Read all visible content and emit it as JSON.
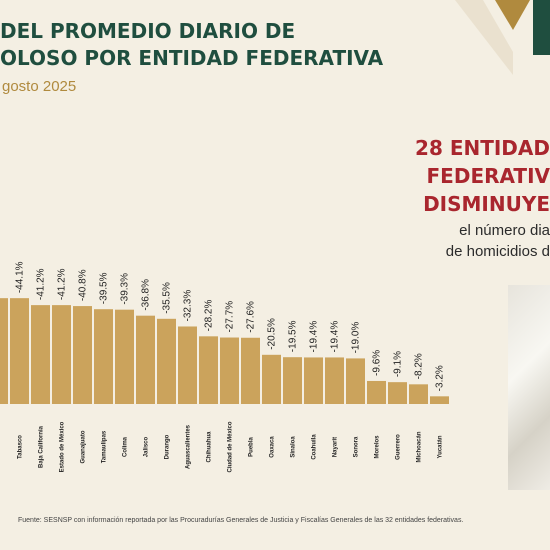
{
  "header": {
    "title_line1": "DEL PROMEDIO DIARIO DE",
    "title_line2": "OLOSO POR ENTIDAD FEDERATIVA",
    "subtitle": "gosto 2025"
  },
  "side_panel": {
    "headline": [
      "28 ENTIDAD",
      "FEDERATIV",
      "DISMINUYE"
    ],
    "body": [
      "el número dia",
      "de homicidios d"
    ]
  },
  "footer": {
    "source": "Fuente: SESNSP con información reportada por las Procuradurías Generales de Justicia y Fiscalías Generales de las 32 entidades federativas."
  },
  "colors": {
    "bar": "#cba35c",
    "title": "#1f4e3f",
    "accent_red": "#a9262e",
    "background": "#f4efe3"
  },
  "chart_data": {
    "type": "bar",
    "categories": [
      "",
      "Tabasco",
      "Baja California",
      "Estado de México",
      "Guanajuato",
      "Tamaulipas",
      "Colima",
      "Jalisco",
      "Durango",
      "Aguascalientes",
      "Chihuahua",
      "Ciudad de México",
      "Puebla",
      "Oaxaca",
      "Sinaloa",
      "Coahuila",
      "Nayarit",
      "Sonora",
      "Morelos",
      "Guerrero",
      "Michoacán",
      "Yucatán"
    ],
    "values": [
      -44.1,
      -44.1,
      -41.2,
      -41.2,
      -40.8,
      -39.5,
      -39.3,
      -36.8,
      -35.5,
      -32.3,
      -28.2,
      -27.7,
      -27.6,
      -20.5,
      -19.5,
      -19.4,
      -19.4,
      -19.0,
      -9.6,
      -9.1,
      -8.2,
      -3.2
    ],
    "data_labels": [
      "",
      "-44.1%",
      "-41.2%",
      "-41.2%",
      "-40.8%",
      "-39.5%",
      "-39.3%",
      "-36.8%",
      "-35.5%",
      "-32.3%",
      "-28.2%",
      "-27.7%",
      "-27.6%",
      "-20.5%",
      "-19.5%",
      "-19.4%",
      "-19.4%",
      "-19.0%",
      "-9.6%",
      "-9.1%",
      "-8.2%",
      "-3.2%"
    ],
    "title": "",
    "xlabel": "",
    "ylabel": "",
    "grid": false
  }
}
